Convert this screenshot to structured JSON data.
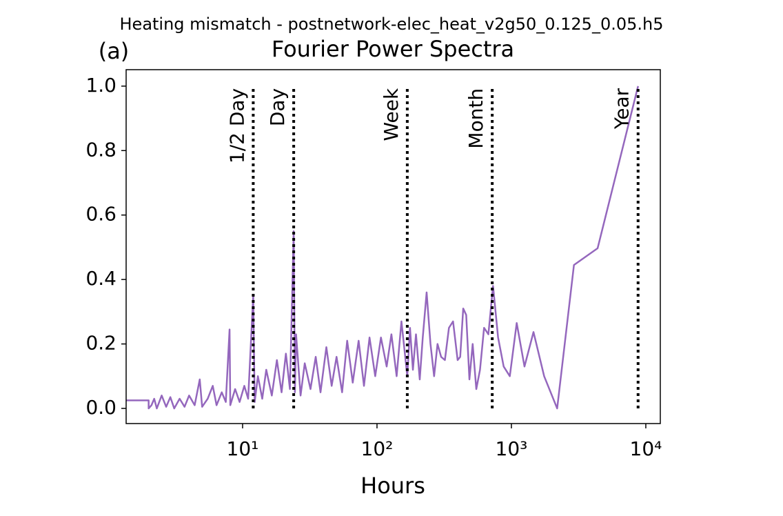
{
  "chart_data": {
    "type": "line",
    "suptitle": "Heating mismatch - postnetwork-elec_heat_v2g50_0.125_0.05.h5",
    "title": "Fourier Power Spectra",
    "panel_label": "(a)",
    "x_label": "Hours",
    "log_x": true,
    "xlim": [
      1.36,
      12820
    ],
    "xticks": [
      {
        "value": 10,
        "label": "10¹"
      },
      {
        "value": 100,
        "label": "10²"
      },
      {
        "value": 1000,
        "label": "10³"
      },
      {
        "value": 10000,
        "label": "10⁴"
      }
    ],
    "ylim": [
      -0.047,
      1.051
    ],
    "yticks": [
      {
        "value": 0,
        "label": "0.0"
      },
      {
        "value": 0.2,
        "label": "0.2"
      },
      {
        "value": 0.4,
        "label": "0.4"
      },
      {
        "value": 0.6,
        "label": "0.6"
      },
      {
        "value": 0.8,
        "label": "0.8"
      },
      {
        "value": 1,
        "label": "1.0"
      }
    ],
    "vlines": [
      {
        "label": "1/2 Day",
        "x": 12
      },
      {
        "label": "Day",
        "x": 24
      },
      {
        "label": "Week",
        "x": 168
      },
      {
        "label": "Month",
        "x": 720
      },
      {
        "label": "Year",
        "x": 8760
      }
    ],
    "vline_range": [
      0,
      1
    ],
    "series": [
      {
        "color": "#9467bd",
        "x": [
          1.36,
          2.0,
          2.0,
          2.1,
          2.2,
          2.3,
          2.5,
          2.7,
          2.9,
          3.1,
          3.4,
          3.7,
          4.0,
          4.4,
          4.8,
          5.0,
          5.5,
          6.0,
          6.4,
          7.0,
          7.5,
          8.0,
          8.1,
          8.8,
          9.5,
          10.3,
          11.0,
          12.0,
          12.3,
          13.0,
          14.0,
          15.0,
          16.5,
          18,
          19.5,
          21,
          22.5,
          24,
          24.5,
          25,
          27,
          29,
          32,
          35,
          38,
          42,
          46,
          50,
          55,
          60,
          66,
          73,
          80,
          88,
          97,
          107,
          118,
          128,
          140,
          152,
          168,
          176,
          185,
          195,
          208,
          219,
          234,
          250,
          266,
          282,
          300,
          320,
          343,
          368,
          398,
          416,
          438,
          461,
          487,
          515,
          548,
          584,
          626,
          674,
          730,
          796,
          876,
          973,
          1095,
          1251,
          1460,
          1752,
          2190,
          2920,
          4380,
          8760
        ],
        "values": [
          0.025,
          0.025,
          0.0,
          0.01,
          0.03,
          0.0,
          0.04,
          0.005,
          0.035,
          0.0,
          0.03,
          0.005,
          0.04,
          0.01,
          0.09,
          0.005,
          0.03,
          0.07,
          0.01,
          0.05,
          0.02,
          0.245,
          0.01,
          0.06,
          0.02,
          0.07,
          0.03,
          0.35,
          0.02,
          0.1,
          0.03,
          0.12,
          0.04,
          0.15,
          0.05,
          0.17,
          0.06,
          0.55,
          0.05,
          0.23,
          0.04,
          0.14,
          0.06,
          0.16,
          0.05,
          0.19,
          0.07,
          0.16,
          0.05,
          0.21,
          0.08,
          0.21,
          0.07,
          0.22,
          0.1,
          0.22,
          0.13,
          0.23,
          0.1,
          0.27,
          0.1,
          0.25,
          0.12,
          0.23,
          0.09,
          0.22,
          0.36,
          0.2,
          0.1,
          0.2,
          0.16,
          0.15,
          0.25,
          0.27,
          0.15,
          0.16,
          0.31,
          0.29,
          0.09,
          0.2,
          0.06,
          0.12,
          0.25,
          0.23,
          0.38,
          0.22,
          0.13,
          0.1,
          0.265,
          0.13,
          0.237,
          0.1,
          0.0,
          0.445,
          0.497,
          1.0
        ]
      }
    ]
  }
}
